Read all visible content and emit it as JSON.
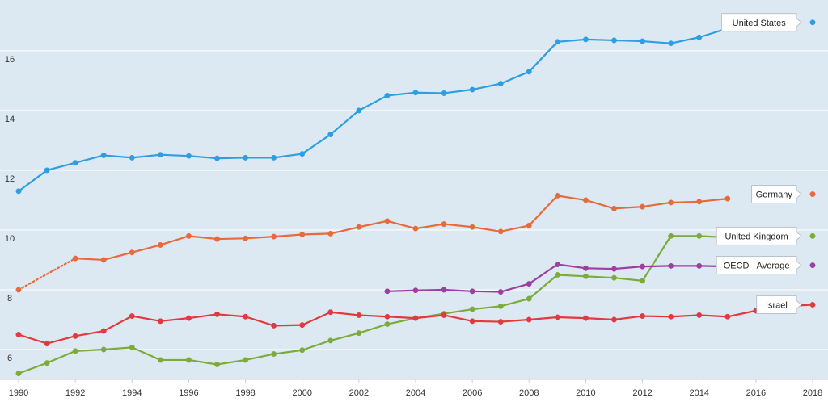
{
  "chart_data": {
    "type": "line",
    "title": "",
    "xlabel": "",
    "ylabel": "",
    "xlim": [
      1990,
      2018
    ],
    "ylim": [
      5,
      17.7
    ],
    "x_ticks": [
      1990,
      1992,
      1994,
      1996,
      1998,
      2000,
      2002,
      2004,
      2006,
      2008,
      2010,
      2012,
      2014,
      2016,
      2018
    ],
    "x_tick_labels": [
      "1990",
      "1992",
      "1994",
      "1996",
      "1998",
      "2000",
      "2002",
      "2004",
      "2006",
      "2008",
      "2010",
      "2012",
      "2014",
      "2016",
      "2018"
    ],
    "y_ticks": [
      6,
      8,
      10,
      12,
      14,
      16
    ],
    "y_tick_labels": [
      "6",
      "8",
      "10",
      "12",
      "14",
      "16"
    ],
    "grid": true,
    "legend": "series labels at right end of lines",
    "series": [
      {
        "name": "United States",
        "color": "#2e9ee3",
        "x": [
          1990,
          1991,
          1992,
          1993,
          1994,
          1995,
          1996,
          1997,
          1998,
          1999,
          2000,
          2001,
          2002,
          2003,
          2004,
          2005,
          2006,
          2007,
          2008,
          2009,
          2010,
          2011,
          2012,
          2013,
          2014,
          2015,
          2016,
          2017,
          2018
        ],
        "values": [
          11.3,
          12.0,
          12.25,
          12.5,
          12.42,
          12.52,
          12.48,
          12.4,
          12.42,
          12.42,
          12.55,
          13.2,
          14.0,
          14.5,
          14.6,
          14.58,
          14.7,
          14.9,
          15.3,
          16.3,
          16.38,
          16.35,
          16.32,
          16.25,
          16.45,
          16.75,
          null,
          null,
          16.95
        ],
        "dashed_segments": []
      },
      {
        "name": "Germany",
        "color": "#e8693c",
        "x": [
          1990,
          1991,
          1992,
          1993,
          1994,
          1995,
          1996,
          1997,
          1998,
          1999,
          2000,
          2001,
          2002,
          2003,
          2004,
          2005,
          2006,
          2007,
          2008,
          2009,
          2010,
          2011,
          2012,
          2013,
          2014,
          2015,
          2016,
          2017,
          2018
        ],
        "values": [
          8.0,
          null,
          9.05,
          9.0,
          9.25,
          9.5,
          9.8,
          9.7,
          9.72,
          9.78,
          9.85,
          9.88,
          10.1,
          10.3,
          10.05,
          10.2,
          10.1,
          9.95,
          10.15,
          11.15,
          11.0,
          10.72,
          10.78,
          10.92,
          10.95,
          11.05,
          null,
          null,
          11.2
        ],
        "dashed_segments": [
          [
            1990,
            1992
          ]
        ]
      },
      {
        "name": "United Kingdom",
        "color": "#7cab3a",
        "x": [
          1990,
          1991,
          1992,
          1993,
          1994,
          1995,
          1996,
          1997,
          1998,
          1999,
          2000,
          2001,
          2002,
          2003,
          2004,
          2005,
          2006,
          2007,
          2008,
          2009,
          2010,
          2011,
          2012,
          2013,
          2014,
          2015,
          2016,
          2017,
          2018
        ],
        "values": [
          5.2,
          5.55,
          5.95,
          6.0,
          6.07,
          5.65,
          5.65,
          5.5,
          5.65,
          5.85,
          5.98,
          6.3,
          6.55,
          6.85,
          7.05,
          7.2,
          7.35,
          7.45,
          7.7,
          8.5,
          8.45,
          8.4,
          8.3,
          9.8,
          9.8,
          9.75,
          null,
          null,
          9.8
        ],
        "dashed_segments": []
      },
      {
        "name": "OECD - Average",
        "color": "#9c3fa0",
        "x": [
          2003,
          2004,
          2005,
          2006,
          2007,
          2008,
          2009,
          2010,
          2011,
          2012,
          2013,
          2014,
          2015,
          2016,
          2017,
          2018
        ],
        "values": [
          7.95,
          7.98,
          8.0,
          7.95,
          7.93,
          8.2,
          8.85,
          8.72,
          8.7,
          8.78,
          8.8,
          8.8,
          8.78,
          null,
          null,
          8.82
        ],
        "dashed_segments": []
      },
      {
        "name": "Israel",
        "color": "#e03a3e",
        "x": [
          1990,
          1991,
          1992,
          1993,
          1994,
          1995,
          1996,
          1997,
          1998,
          1999,
          2000,
          2001,
          2002,
          2003,
          2004,
          2005,
          2006,
          2007,
          2008,
          2009,
          2010,
          2011,
          2012,
          2013,
          2014,
          2015,
          2016,
          2017,
          2018
        ],
        "values": [
          6.5,
          6.2,
          6.45,
          6.62,
          7.12,
          6.95,
          7.05,
          7.18,
          7.1,
          6.8,
          6.82,
          7.25,
          7.15,
          7.1,
          7.05,
          7.15,
          6.95,
          6.93,
          7.0,
          7.08,
          7.05,
          7.0,
          7.12,
          7.1,
          7.15,
          7.1,
          7.3,
          7.45,
          7.5
        ],
        "dashed_segments": []
      }
    ]
  },
  "colors": {
    "plot_background": "#dce9f2",
    "grid": "#ffffff",
    "axis": "#c8d2d9"
  }
}
